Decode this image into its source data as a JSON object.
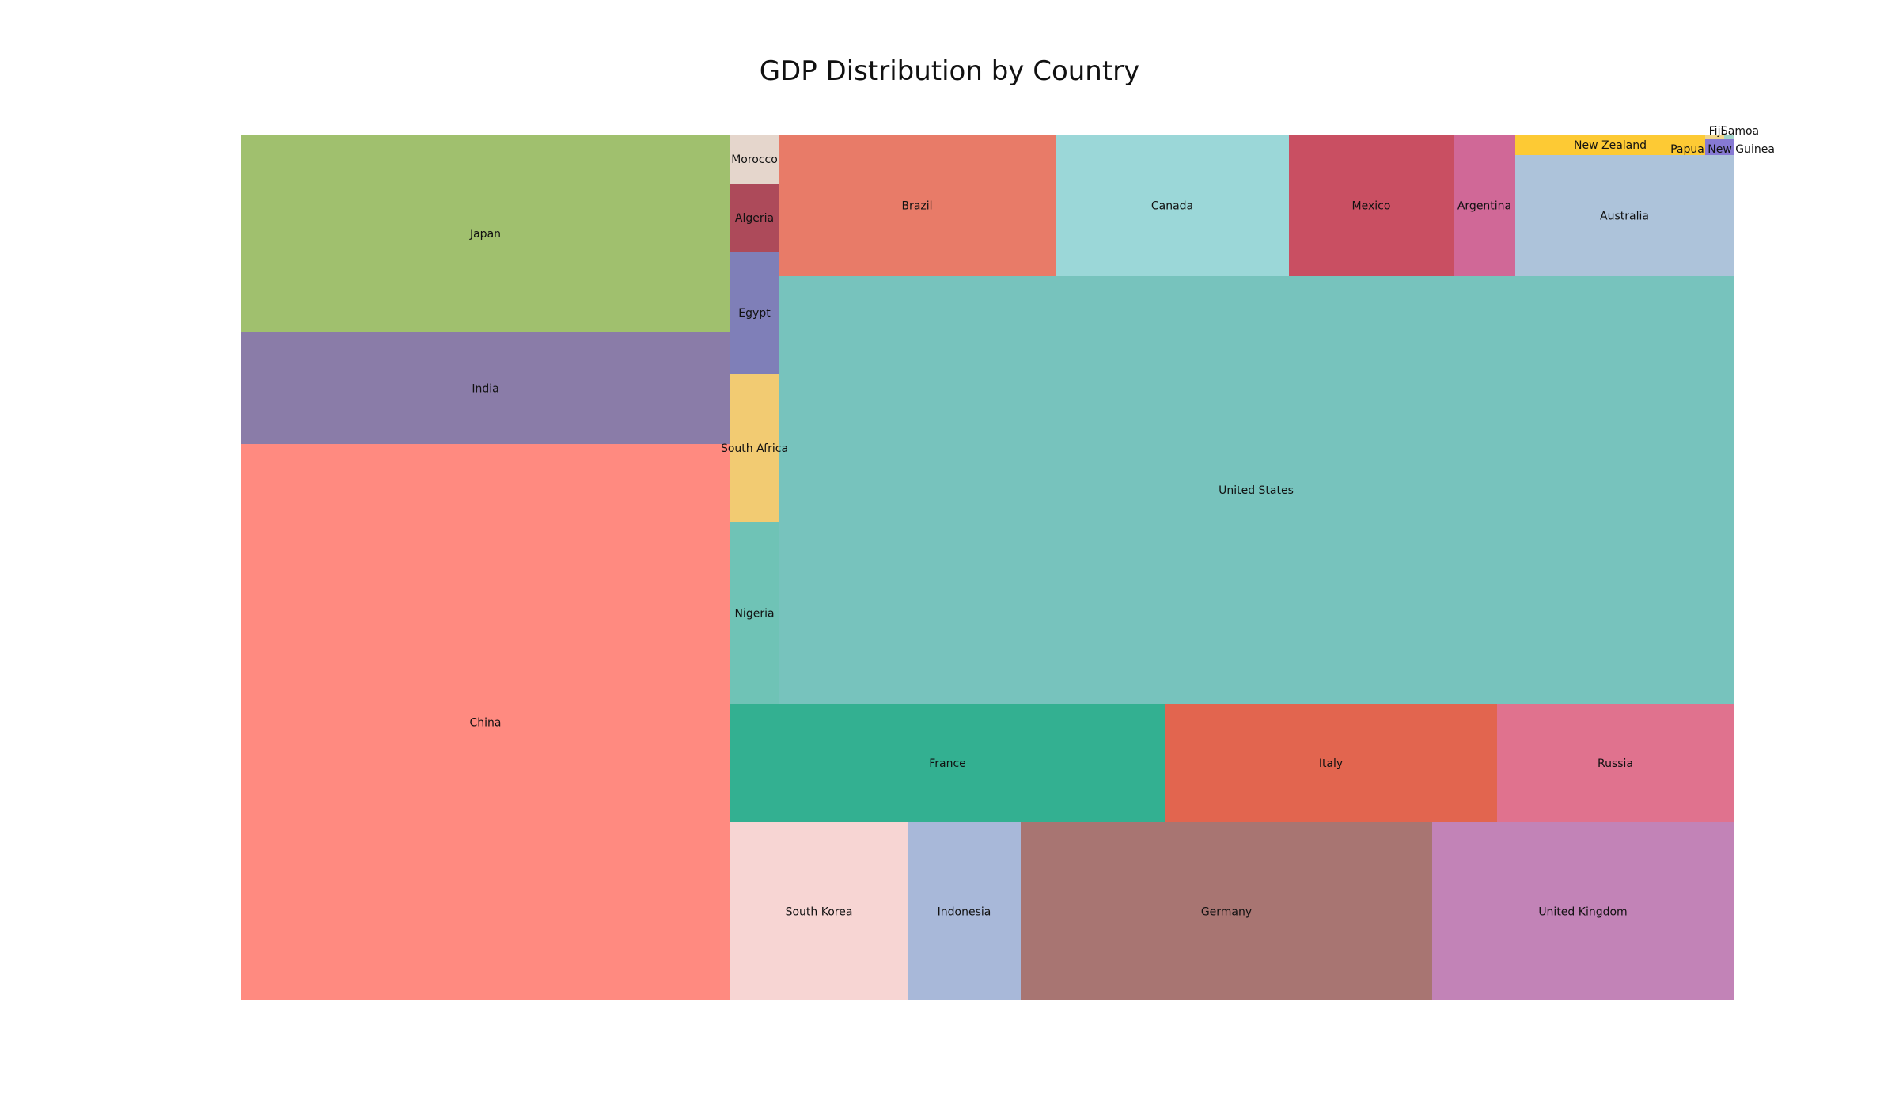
{
  "title": "GDP Distribution by Country",
  "chart_data": {
    "type": "treemap",
    "title": "GDP Distribution by Country",
    "legend": "none",
    "grid": false,
    "cells": [
      {
        "name": "China",
        "value": 17.7,
        "color": "#ff8a80"
      },
      {
        "name": "India",
        "value": 3.5,
        "color": "#8a7ca8"
      },
      {
        "name": "Japan",
        "value": 4.2,
        "color": "#a0c06e"
      },
      {
        "name": "Nigeria",
        "value": 0.48,
        "color": "#6fc3b6"
      },
      {
        "name": "South Africa",
        "value": 0.4,
        "color": "#f2cb72"
      },
      {
        "name": "Egypt",
        "value": 0.33,
        "color": "#7f7fb8"
      },
      {
        "name": "Algeria",
        "value": 0.18,
        "color": "#ad4a5a"
      },
      {
        "name": "Morocco",
        "value": 0.13,
        "color": "#e5d6cc"
      },
      {
        "name": "South Korea",
        "value": 1.7,
        "color": "#f7d5d3"
      },
      {
        "name": "Indonesia",
        "value": 1.1,
        "color": "#a8b8d9"
      },
      {
        "name": "Germany",
        "value": 4.0,
        "color": "#a87572"
      },
      {
        "name": "United Kingdom",
        "value": 2.9,
        "color": "#c283b7"
      },
      {
        "name": "France",
        "value": 3.0,
        "color": "#33b091"
      },
      {
        "name": "Italy",
        "value": 2.3,
        "color": "#e2654f"
      },
      {
        "name": "Russia",
        "value": 1.6,
        "color": "#e0728e"
      },
      {
        "name": "United States",
        "value": 23.0,
        "color": "#77c3bd"
      },
      {
        "name": "Brazil",
        "value": 2.0,
        "color": "#e87b68"
      },
      {
        "name": "Canada",
        "value": 1.7,
        "color": "#9bd7d8"
      },
      {
        "name": "Mexico",
        "value": 1.2,
        "color": "#c94f62"
      },
      {
        "name": "Argentina",
        "value": 0.45,
        "color": "#d06897"
      },
      {
        "name": "Australia",
        "value": 1.5,
        "color": "#adc3da"
      },
      {
        "name": "New Zealand",
        "value": 0.25,
        "color": "#fdca34"
      },
      {
        "name": "Papua New Guinea",
        "value": 0.03,
        "color": "#8679d3"
      },
      {
        "name": "Fiji",
        "value": 0.005,
        "color": "#f0d58a"
      },
      {
        "name": "Samoa",
        "value": 0.001,
        "color": "#9fd3c7"
      }
    ]
  }
}
